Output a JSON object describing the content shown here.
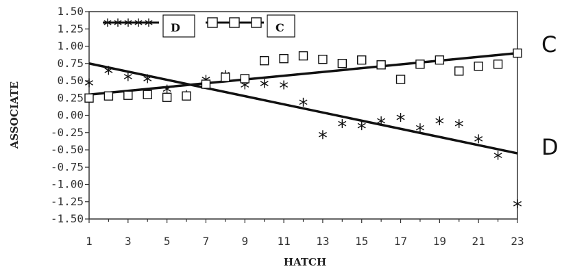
{
  "chart_data": {
    "type": "scatter",
    "xlabel": "HATCH",
    "ylabel": "ASSOCIATE",
    "xlim": [
      1,
      23
    ],
    "ylim": [
      -1.5,
      1.5
    ],
    "x_ticks": [
      "1",
      "3",
      "5",
      "7",
      "9",
      "11",
      "13",
      "15",
      "17",
      "19",
      "21",
      "23"
    ],
    "y_ticks": [
      "1.50",
      "1.25",
      "1.00",
      "0.75",
      "0.50",
      "0.25",
      "0.00",
      "-0.25",
      "-0.50",
      "-0.75",
      "-1.00",
      "-1.25",
      "-1.50"
    ],
    "grid": false,
    "legend_position": "top-left",
    "series": [
      {
        "name": "D",
        "marker": "asterisk",
        "x": [
          1,
          2,
          3,
          4,
          5,
          6,
          7,
          8,
          9,
          10,
          11,
          12,
          13,
          14,
          15,
          16,
          17,
          18,
          19,
          20,
          21,
          22,
          23
        ],
        "y": [
          0.47,
          0.65,
          0.56,
          0.53,
          0.38,
          0.3,
          0.52,
          0.59,
          0.44,
          0.46,
          0.44,
          0.19,
          -0.28,
          -0.12,
          -0.15,
          -0.08,
          -0.03,
          -0.18,
          -0.08,
          -0.12,
          -0.34,
          -0.58,
          -1.28
        ],
        "fit": [
          0.75,
          -0.55
        ]
      },
      {
        "name": "C",
        "marker": "square",
        "x": [
          1,
          2,
          3,
          4,
          5,
          6,
          7,
          8,
          9,
          10,
          11,
          12,
          13,
          14,
          15,
          16,
          17,
          18,
          19,
          20,
          21,
          22,
          23
        ],
        "y": [
          0.25,
          0.28,
          0.29,
          0.3,
          0.26,
          0.28,
          0.45,
          0.55,
          0.53,
          0.79,
          0.82,
          0.86,
          0.81,
          0.75,
          0.8,
          0.73,
          0.52,
          0.74,
          0.8,
          0.64,
          0.71,
          0.74,
          0.9
        ],
        "fit": [
          0.3,
          0.9
        ]
      }
    ],
    "side_labels": [
      "C",
      "D"
    ],
    "colors": {
      "ink": "#111111",
      "axis": "#333333"
    }
  }
}
